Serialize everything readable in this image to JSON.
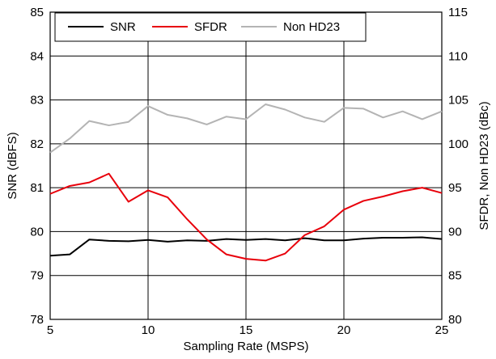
{
  "chart_data": {
    "type": "line",
    "title": "",
    "xlabel": "Sampling Rate (MSPS)",
    "ylabel_left": "SNR (dBFS)",
    "ylabel_right": "SFDR, Non HD23 (dBc)",
    "xlim": [
      5,
      25
    ],
    "ylim_left": [
      78,
      85
    ],
    "ylim_right": [
      80,
      115
    ],
    "x_ticks": [
      5,
      10,
      15,
      20,
      25
    ],
    "y_ticks_left": [
      78,
      79,
      80,
      81,
      82,
      83,
      84,
      85
    ],
    "y_ticks_right": [
      80,
      85,
      90,
      95,
      100,
      105,
      110,
      115
    ],
    "grid": true,
    "legend_position": "top-left",
    "x": [
      5,
      6,
      7,
      8,
      9,
      10,
      11,
      12,
      13,
      14,
      15,
      16,
      17,
      18,
      19,
      20,
      21,
      22,
      23,
      24,
      25
    ],
    "series": [
      {
        "name": "SNR",
        "axis": "left",
        "color": "#000000",
        "values": [
          79.45,
          79.48,
          79.82,
          79.79,
          79.78,
          79.81,
          79.77,
          79.8,
          79.79,
          79.83,
          79.81,
          79.83,
          79.8,
          79.85,
          79.8,
          79.8,
          79.84,
          79.86,
          79.86,
          79.87,
          79.83
        ]
      },
      {
        "name": "SFDR",
        "axis": "right",
        "color": "#e8000b",
        "values": [
          94.3,
          95.2,
          95.6,
          96.6,
          93.4,
          94.7,
          93.9,
          91.4,
          89.1,
          87.4,
          86.9,
          86.7,
          87.5,
          89.6,
          90.6,
          92.5,
          93.5,
          94.0,
          94.6,
          95.0,
          94.4
        ]
      },
      {
        "name": "Non HD23",
        "axis": "right",
        "color": "#b4b4b4",
        "values": [
          99.0,
          100.6,
          102.6,
          102.1,
          102.5,
          104.3,
          103.3,
          102.9,
          102.2,
          103.1,
          102.8,
          104.5,
          103.9,
          103.0,
          102.5,
          104.1,
          104.0,
          103.0,
          103.7,
          102.8,
          103.7
        ]
      }
    ]
  }
}
